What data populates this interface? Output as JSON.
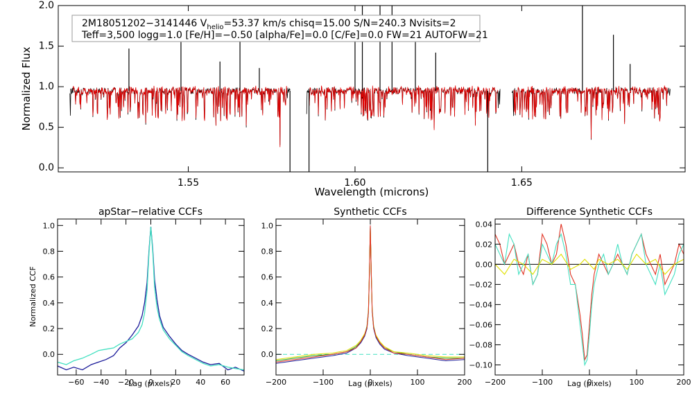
{
  "info": {
    "line1_prefix": "2M18051202−3141446  V",
    "line1_sub": "helio",
    "line1_rest": "=53.37 km/s  chisq=15.00  S/N=240.3  Nvisits=2",
    "line2": "Teff=3,500 logg=1.0 [Fe/H]=−0.50 [alpha/Fe]=0.0 [C/Fe]=0.0 FW=21 AUTOFW=21"
  },
  "colors": {
    "observed": "#000000",
    "model": "#e00000",
    "ccf_dark": "#1a1a99",
    "ccf_cyan": "#40e0c0",
    "syn_red": "#e03020",
    "syn_green": "#20a020",
    "syn_yellow": "#e0e000"
  },
  "chart_data": [
    {
      "id": "spectrum",
      "type": "line",
      "title": "",
      "xlabel": "Wavelength (microns)",
      "ylabel": "Normalized Flux",
      "xlim": [
        1.511,
        1.699
      ],
      "ylim": [
        -0.05,
        2.0
      ],
      "xticks": [
        "1.55",
        "1.60",
        "1.65"
      ],
      "xtick_values": [
        1.55,
        1.6,
        1.65
      ],
      "yticks": [
        "0.0",
        "0.5",
        "1.0",
        "1.5",
        "2.0"
      ],
      "ytick_values": [
        0.0,
        0.5,
        1.0,
        1.5,
        2.0
      ],
      "chips": [
        [
          1.5145,
          1.5805
        ],
        [
          1.5855,
          1.6435
        ],
        [
          1.647,
          1.6945
        ]
      ],
      "continuum": 0.95,
      "spikes": [
        [
          1.5322,
          1.47
        ],
        [
          1.5478,
          1.55
        ],
        [
          1.5595,
          1.31
        ],
        [
          1.5655,
          1.75
        ],
        [
          1.5713,
          1.23
        ],
        [
          1.6,
          1.72
        ],
        [
          1.6022,
          2.0
        ],
        [
          1.6075,
          2.0
        ],
        [
          1.6111,
          2.0
        ],
        [
          1.6181,
          1.55
        ],
        [
          1.6242,
          1.42
        ],
        [
          1.6682,
          2.0
        ],
        [
          1.6775,
          1.64
        ],
        [
          1.6825,
          1.28
        ]
      ],
      "dips": [
        [
          1.5805,
          -0.05
        ],
        [
          1.5862,
          -0.05
        ],
        [
          1.6398,
          -0.05
        ]
      ],
      "series": [
        {
          "name": "Observed spectrum",
          "color": "#000000"
        },
        {
          "name": "Model spectrum",
          "color": "#e00000"
        }
      ]
    },
    {
      "id": "apstar",
      "type": "line",
      "title": "apStar−relative CCFs",
      "xlabel": "Lag (pixels)",
      "ylabel": "Normalized CCF",
      "xlim": [
        -75,
        75
      ],
      "ylim": [
        -0.16,
        1.05
      ],
      "xticks": [
        "−60",
        "−40",
        "−20",
        "0",
        "20",
        "40",
        "60"
      ],
      "xtick_values": [
        -60,
        -40,
        -20,
        0,
        20,
        40,
        60
      ],
      "yticks": [
        "0.0",
        "0.2",
        "0.4",
        "0.6",
        "0.8",
        "1.0"
      ],
      "ytick_values": [
        0.0,
        0.2,
        0.4,
        0.6,
        0.8,
        1.0
      ],
      "series": [
        {
          "name": "CCF 1",
          "color": "#1a1a99",
          "x": [
            -75,
            -68,
            -62,
            -55,
            -48,
            -42,
            -36,
            -30,
            -25,
            -20,
            -15,
            -10,
            -7,
            -5,
            -3,
            -1.5,
            0,
            1.5,
            3,
            5,
            7,
            10,
            15,
            20,
            25,
            30,
            36,
            42,
            48,
            55,
            62,
            68,
            75
          ],
          "y": [
            -0.09,
            -0.12,
            -0.1,
            -0.12,
            -0.08,
            -0.06,
            -0.04,
            -0.01,
            0.05,
            0.09,
            0.15,
            0.22,
            0.3,
            0.4,
            0.56,
            0.8,
            0.99,
            0.82,
            0.58,
            0.42,
            0.3,
            0.21,
            0.14,
            0.08,
            0.03,
            0.0,
            -0.03,
            -0.06,
            -0.08,
            -0.07,
            -0.12,
            -0.1,
            -0.13
          ]
        },
        {
          "name": "CCF 2",
          "color": "#40e0c0",
          "x": [
            -75,
            -68,
            -62,
            -55,
            -48,
            -42,
            -36,
            -30,
            -25,
            -20,
            -15,
            -10,
            -7,
            -5,
            -3,
            -1.5,
            0,
            1.5,
            3,
            5,
            7,
            10,
            15,
            20,
            25,
            30,
            36,
            42,
            48,
            55,
            62,
            68,
            75
          ],
          "y": [
            -0.06,
            -0.08,
            -0.05,
            -0.03,
            0.0,
            0.03,
            0.04,
            0.05,
            0.08,
            0.1,
            0.12,
            0.17,
            0.23,
            0.32,
            0.5,
            0.78,
            0.99,
            0.8,
            0.52,
            0.36,
            0.27,
            0.19,
            0.12,
            0.07,
            0.02,
            -0.01,
            -0.04,
            -0.07,
            -0.09,
            -0.08,
            -0.1,
            -0.11,
            -0.12
          ]
        }
      ]
    },
    {
      "id": "synthetic",
      "type": "line",
      "title": "Synthetic CCFs",
      "xlabel": "Lag (pixels)",
      "ylabel": "",
      "xlim": [
        -200,
        200
      ],
      "ylim": [
        -0.16,
        1.05
      ],
      "xticks": [
        "−200",
        "−100",
        "0",
        "100",
        "200"
      ],
      "xtick_values": [
        -200,
        -100,
        0,
        100,
        200
      ],
      "yticks": [
        "0.0",
        "0.2",
        "0.4",
        "0.6",
        "0.8",
        "1.0"
      ],
      "ytick_values": [
        0.0,
        0.2,
        0.4,
        0.6,
        0.8,
        1.0
      ],
      "series": [
        {
          "name": "dark",
          "color": "#1a1a99",
          "x": [
            -200,
            -160,
            -120,
            -80,
            -50,
            -30,
            -20,
            -12,
            -7,
            -4,
            -2,
            0,
            2,
            4,
            7,
            12,
            20,
            30,
            50,
            80,
            120,
            160,
            200
          ],
          "y": [
            -0.07,
            -0.05,
            -0.03,
            -0.01,
            0.01,
            0.05,
            0.09,
            0.14,
            0.2,
            0.32,
            0.6,
            1.0,
            0.62,
            0.33,
            0.2,
            0.13,
            0.08,
            0.04,
            0.01,
            -0.01,
            -0.03,
            -0.05,
            -0.04
          ]
        },
        {
          "name": "green",
          "color": "#20a020",
          "x": [
            -200,
            -160,
            -120,
            -80,
            -50,
            -30,
            -20,
            -12,
            -7,
            -4,
            -2,
            0,
            2,
            4,
            7,
            12,
            20,
            30,
            50,
            80,
            120,
            160,
            200
          ],
          "y": [
            -0.05,
            -0.03,
            -0.01,
            0.0,
            0.02,
            0.06,
            0.1,
            0.15,
            0.22,
            0.34,
            0.62,
            0.99,
            0.64,
            0.35,
            0.22,
            0.14,
            0.09,
            0.05,
            0.02,
            0.0,
            -0.02,
            -0.03,
            -0.03
          ]
        },
        {
          "name": "yellow",
          "color": "#e0e000",
          "x": [
            -200,
            -160,
            -120,
            -80,
            -50,
            -30,
            -20,
            -12,
            -7,
            -4,
            -2,
            0,
            2,
            4,
            7,
            12,
            20,
            30,
            50,
            80,
            120,
            160,
            200
          ],
          "y": [
            -0.04,
            -0.02,
            0.0,
            0.01,
            0.03,
            0.07,
            0.11,
            0.16,
            0.21,
            0.33,
            0.61,
            0.99,
            0.63,
            0.34,
            0.21,
            0.15,
            0.1,
            0.06,
            0.02,
            0.01,
            -0.01,
            -0.02,
            -0.02
          ]
        },
        {
          "name": "red",
          "color": "#e03020",
          "x": [
            -200,
            -160,
            -120,
            -80,
            -50,
            -30,
            -20,
            -12,
            -7,
            -4,
            -2,
            0,
            2,
            4,
            7,
            12,
            20,
            30,
            50,
            80,
            120,
            160,
            200
          ],
          "y": [
            -0.06,
            -0.04,
            -0.02,
            0.0,
            0.02,
            0.05,
            0.1,
            0.15,
            0.21,
            0.33,
            0.61,
            1.0,
            0.63,
            0.34,
            0.21,
            0.14,
            0.09,
            0.05,
            0.01,
            0.0,
            -0.02,
            -0.04,
            -0.03
          ]
        }
      ],
      "zero_line": {
        "value": 0.0,
        "style": "dashed",
        "color": "#40e0c0"
      }
    },
    {
      "id": "difference",
      "type": "line",
      "title": "Difference Synthetic CCFs",
      "xlabel": "Lag (pixels)",
      "ylabel": "",
      "xlim": [
        -200,
        200
      ],
      "ylim": [
        -0.11,
        0.045
      ],
      "xticks": [
        "−200",
        "−100",
        "0",
        "100",
        "200"
      ],
      "xtick_values": [
        -200,
        -100,
        0,
        100,
        200
      ],
      "yticks": [
        "−0.10",
        "−0.08",
        "−0.06",
        "−0.04",
        "−0.02",
        "0.00",
        "0.02",
        "0.04"
      ],
      "ytick_values": [
        -0.1,
        -0.08,
        -0.06,
        -0.04,
        -0.02,
        0.0,
        0.02,
        0.04
      ],
      "series": [
        {
          "name": "red",
          "color": "#e03020",
          "x": [
            -200,
            -190,
            -180,
            -170,
            -160,
            -150,
            -140,
            -130,
            -120,
            -110,
            -100,
            -90,
            -80,
            -70,
            -60,
            -50,
            -40,
            -30,
            -20,
            -15,
            -10,
            -5,
            0,
            5,
            10,
            15,
            20,
            30,
            40,
            50,
            60,
            70,
            80,
            90,
            100,
            110,
            120,
            130,
            140,
            150,
            160,
            170,
            180,
            190,
            200
          ],
          "y": [
            0.03,
            0.02,
            0.0,
            0.01,
            0.02,
            0.0,
            -0.01,
            0.01,
            -0.02,
            -0.01,
            0.03,
            0.02,
            0.0,
            0.01,
            0.04,
            0.02,
            -0.01,
            -0.02,
            -0.05,
            -0.07,
            -0.095,
            -0.09,
            -0.06,
            -0.03,
            -0.01,
            0.0,
            0.01,
            0.0,
            -0.01,
            0.0,
            0.01,
            0.0,
            -0.01,
            0.01,
            0.02,
            0.03,
            0.01,
            0.0,
            -0.01,
            0.01,
            -0.02,
            -0.01,
            0.0,
            0.02,
            0.01
          ]
        },
        {
          "name": "cyan",
          "color": "#40e0c0",
          "x": [
            -200,
            -190,
            -180,
            -170,
            -160,
            -150,
            -140,
            -130,
            -120,
            -110,
            -100,
            -90,
            -80,
            -70,
            -60,
            -50,
            -40,
            -30,
            -20,
            -15,
            -10,
            -5,
            0,
            5,
            10,
            15,
            20,
            30,
            40,
            50,
            60,
            70,
            80,
            90,
            100,
            110,
            120,
            130,
            140,
            150,
            160,
            170,
            180,
            190,
            200
          ],
          "y": [
            0.02,
            0.01,
            0.0,
            0.03,
            0.02,
            -0.01,
            0.0,
            0.01,
            -0.02,
            -0.01,
            0.02,
            0.01,
            0.0,
            0.02,
            0.03,
            0.01,
            -0.02,
            -0.02,
            -0.06,
            -0.08,
            -0.1,
            -0.095,
            -0.07,
            -0.04,
            -0.02,
            -0.01,
            0.0,
            0.01,
            -0.01,
            0.0,
            0.02,
            0.0,
            -0.01,
            0.01,
            0.02,
            0.03,
            0.0,
            -0.01,
            -0.02,
            0.0,
            -0.03,
            -0.02,
            -0.01,
            0.01,
            0.02
          ]
        },
        {
          "name": "yellow",
          "color": "#e0e000",
          "x": [
            -200,
            -180,
            -160,
            -140,
            -120,
            -100,
            -80,
            -60,
            -40,
            -20,
            -10,
            0,
            10,
            20,
            40,
            60,
            80,
            100,
            120,
            140,
            160,
            180,
            200
          ],
          "y": [
            0.0,
            -0.01,
            0.005,
            0.0,
            -0.01,
            0.005,
            0.0,
            0.01,
            -0.005,
            0.0,
            0.005,
            0.0,
            -0.005,
            0.005,
            0.0,
            0.005,
            -0.005,
            0.01,
            0.0,
            0.005,
            -0.01,
            0.0,
            0.005
          ]
        }
      ],
      "zero_line": {
        "value": 0.0,
        "style": "solid",
        "color": "#000000"
      }
    }
  ]
}
